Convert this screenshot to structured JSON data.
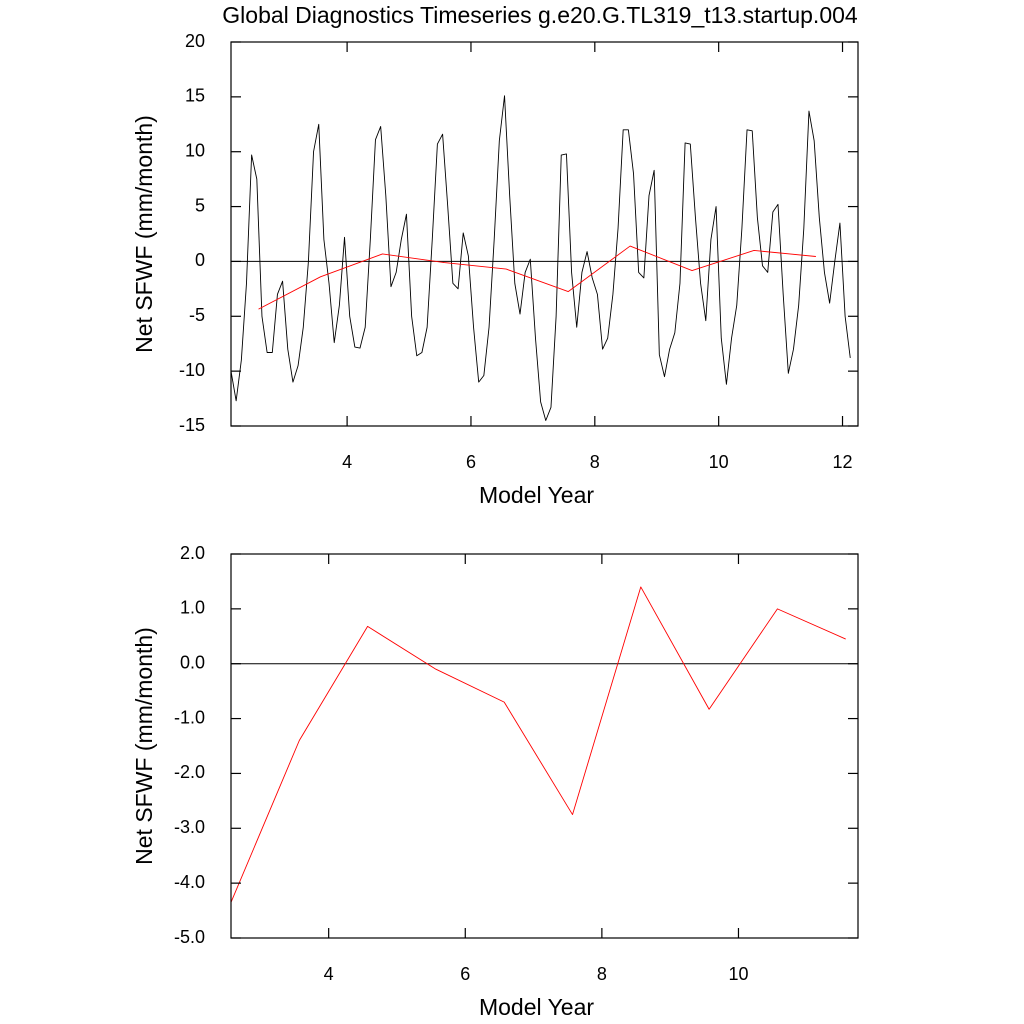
{
  "chart_data": [
    {
      "type": "line",
      "title": "Global Diagnostics Timeseries g.e20.G.TL319_t13.startup.004",
      "x_label": "Model Year",
      "y_label": "Net SFWF (mm/month)",
      "xlim": [
        2.125,
        12.25
      ],
      "ylim": [
        -15,
        20
      ],
      "xticks": [
        4,
        6,
        8,
        10,
        12
      ],
      "yticks": [
        -15,
        -10,
        -5,
        0,
        5,
        10,
        15,
        20
      ],
      "reference_line": 0,
      "series": [
        {
          "color": "#000000",
          "x": [
            2.125,
            2.208,
            2.292,
            2.375,
            2.458,
            2.542,
            2.625,
            2.708,
            2.792,
            2.875,
            2.958,
            3.042,
            3.125,
            3.208,
            3.292,
            3.375,
            3.458,
            3.542,
            3.625,
            3.708,
            3.792,
            3.875,
            3.958,
            4.042,
            4.125,
            4.208,
            4.292,
            4.375,
            4.458,
            4.542,
            4.625,
            4.708,
            4.792,
            4.875,
            4.958,
            5.042,
            5.125,
            5.208,
            5.292,
            5.375,
            5.458,
            5.542,
            5.625,
            5.708,
            5.792,
            5.875,
            5.958,
            6.042,
            6.125,
            6.208,
            6.292,
            6.375,
            6.458,
            6.542,
            6.625,
            6.708,
            6.792,
            6.875,
            6.958,
            7.042,
            7.125,
            7.208,
            7.292,
            7.375,
            7.458,
            7.542,
            7.625,
            7.708,
            7.792,
            7.875,
            7.958,
            8.042,
            8.125,
            8.208,
            8.292,
            8.375,
            8.458,
            8.542,
            8.625,
            8.708,
            8.792,
            8.875,
            8.958,
            9.042,
            9.125,
            9.208,
            9.292,
            9.375,
            9.458,
            9.542,
            9.625,
            9.708,
            9.792,
            9.875,
            9.958,
            10.042,
            10.125,
            10.208,
            10.292,
            10.375,
            10.458,
            10.542,
            10.625,
            10.708,
            10.792,
            10.875,
            10.958,
            11.042,
            11.125,
            11.208,
            11.292,
            11.375,
            11.458,
            11.542,
            11.625,
            11.708,
            11.792,
            11.875,
            11.958,
            12.042,
            12.125
          ],
          "values": [
            -10,
            -12.7,
            -9,
            -2,
            9.7,
            7.5,
            -5,
            -8.3,
            -8.3,
            -3,
            -1.8,
            -8,
            -11,
            -9.5,
            -6,
            0,
            10,
            12.5,
            2,
            -2,
            -7.4,
            -4,
            2.2,
            -5,
            -7.8,
            -7.9,
            -6,
            2,
            11.1,
            12.3,
            6,
            -2.3,
            -1,
            2,
            4.3,
            -5,
            -8.6,
            -8.3,
            -6,
            2,
            10.7,
            11.6,
            5,
            -2,
            -2.5,
            2.6,
            0.5,
            -6,
            -11,
            -10.4,
            -6,
            2,
            11,
            15.1,
            6,
            -2,
            -4.8,
            -1,
            0.2,
            -7,
            -12.8,
            -14.5,
            -13.3,
            -5,
            9.7,
            9.8,
            -1,
            -6,
            -1,
            0.9,
            -1.5,
            -3,
            -8,
            -7,
            -3,
            3,
            12,
            12,
            8,
            -1,
            -1.5,
            6,
            8.3,
            -8.5,
            -10.5,
            -8,
            -6.5,
            -2,
            10.8,
            10.7,
            4,
            -2,
            -5.4,
            2,
            5,
            -7,
            -11.2,
            -7,
            -4,
            3,
            12,
            11.9,
            4,
            -0.4,
            -1,
            4.5,
            5.2,
            -3,
            -10.2,
            -8,
            -4,
            3,
            13.7,
            11,
            4,
            -1,
            -3.8,
            0,
            3.5,
            -5,
            -8.8
          ]
        },
        {
          "color": "#ff0000",
          "x": [
            2.57,
            3.57,
            4.57,
            5.57,
            6.57,
            7.57,
            8.57,
            9.57,
            10.57,
            11.57
          ],
          "values": [
            -4.35,
            -1.4,
            0.68,
            -0.1,
            -0.7,
            -2.75,
            1.4,
            -0.83,
            1.0,
            0.45
          ]
        }
      ]
    },
    {
      "type": "line",
      "x_label": "Model Year",
      "y_label": "Net SFWF (mm/month)",
      "xlim": [
        2.57,
        11.75
      ],
      "ylim": [
        -5,
        2
      ],
      "xticks": [
        4,
        6,
        8,
        10
      ],
      "yticks": [
        {
          "value": -5,
          "label": "-5.0"
        },
        {
          "value": -4,
          "label": "-4.0"
        },
        {
          "value": -3,
          "label": "-3.0"
        },
        {
          "value": -2,
          "label": "-2.0"
        },
        {
          "value": -1,
          "label": "-1.0"
        },
        {
          "value": 0,
          "label": "0.0"
        },
        {
          "value": 1,
          "label": "1.0"
        },
        {
          "value": 2,
          "label": "2.0"
        }
      ],
      "reference_line": 0,
      "series": [
        {
          "color": "#ff0000",
          "x": [
            2.57,
            3.57,
            4.57,
            5.57,
            6.57,
            7.57,
            8.57,
            9.57,
            10.57,
            11.57
          ],
          "values": [
            -4.35,
            -1.4,
            0.68,
            -0.1,
            -0.7,
            -2.75,
            1.4,
            -0.83,
            1.0,
            0.45
          ]
        }
      ]
    }
  ]
}
